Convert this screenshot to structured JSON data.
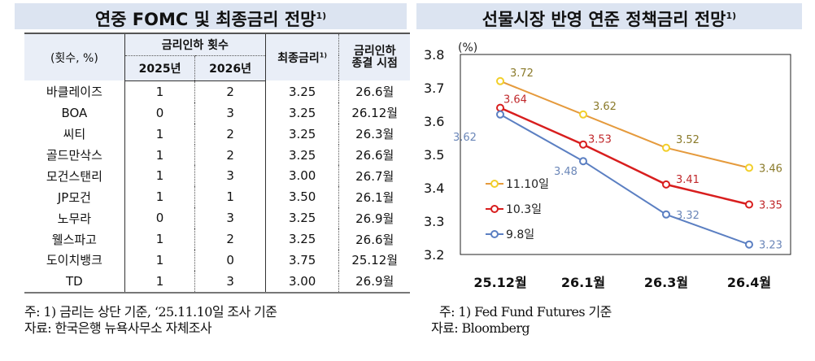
{
  "table": {
    "title": "연중 FOMC 및 최종금리 전망",
    "title_sup": "1)",
    "header": {
      "unit": "(횟수, %)",
      "cuts_group": "금리인하 횟수",
      "y2025": "2025년",
      "y2026": "2026년",
      "final_rate": "최종금리",
      "final_rate_sup": "1)",
      "end_time_line1": "금리인하",
      "end_time_line2": "종결 시점"
    },
    "rows": [
      {
        "bank": "바클레이즈",
        "c2025": "1",
        "c2026": "2",
        "rate": "3.25",
        "end": "26.6월"
      },
      {
        "bank": "BOA",
        "c2025": "0",
        "c2026": "3",
        "rate": "3.25",
        "end": "26.12월"
      },
      {
        "bank": "씨티",
        "c2025": "1",
        "c2026": "2",
        "rate": "3.25",
        "end": "26.3월"
      },
      {
        "bank": "골드만삭스",
        "c2025": "1",
        "c2026": "2",
        "rate": "3.25",
        "end": "26.6월"
      },
      {
        "bank": "모건스탠리",
        "c2025": "1",
        "c2026": "3",
        "rate": "3.00",
        "end": "26.7월"
      },
      {
        "bank": "JP모건",
        "c2025": "1",
        "c2026": "1",
        "rate": "3.50",
        "end": "26.1월"
      },
      {
        "bank": "노무라",
        "c2025": "0",
        "c2026": "3",
        "rate": "3.25",
        "end": "26.9월"
      },
      {
        "bank": "웰스파고",
        "c2025": "1",
        "c2026": "2",
        "rate": "3.25",
        "end": "26.6월"
      },
      {
        "bank": "도이치뱅크",
        "c2025": "1",
        "c2026": "0",
        "rate": "3.75",
        "end": "25.12월"
      },
      {
        "bank": "TD",
        "c2025": "1",
        "c2026": "3",
        "rate": "3.00",
        "end": "26.9월"
      }
    ],
    "note": "주: 1) 금리는 상단 기준, ‘25.11.10일 조사 기준",
    "source": "자료: 한국은행 뉴욕사무소 자체조사"
  },
  "chart_data": {
    "type": "line",
    "title": "선물시장 반영 연준 정책금리 전망",
    "title_sup": "1)",
    "ylabel": "(%)",
    "ylim": [
      3.2,
      3.8
    ],
    "yticks": [
      "3.8",
      "3.7",
      "3.6",
      "3.5",
      "3.4",
      "3.3",
      "3.2"
    ],
    "categories": [
      "25.12월",
      "26.1월",
      "26.3월",
      "26.4월"
    ],
    "grid": false,
    "legend_placement": "left-inside",
    "series": [
      {
        "name": "11.10일",
        "color": "#e59a3c",
        "marker": "#f2cf2a",
        "label_color": "#8a7a2a",
        "values": [
          3.72,
          3.62,
          3.52,
          3.46
        ]
      },
      {
        "name": "10.3일",
        "color": "#d81e1e",
        "marker": "#d81e1e",
        "label_color": "#c0282b",
        "values": [
          3.64,
          3.53,
          3.41,
          3.35
        ]
      },
      {
        "name": "9.8일",
        "color": "#5b7fc2",
        "marker": "#5b7fc2",
        "label_color": "#6a86b8",
        "values": [
          3.62,
          3.48,
          3.32,
          3.23
        ]
      }
    ],
    "note": "주: 1) Fed Fund Futures 기준",
    "source": "자료: Bloomberg"
  }
}
